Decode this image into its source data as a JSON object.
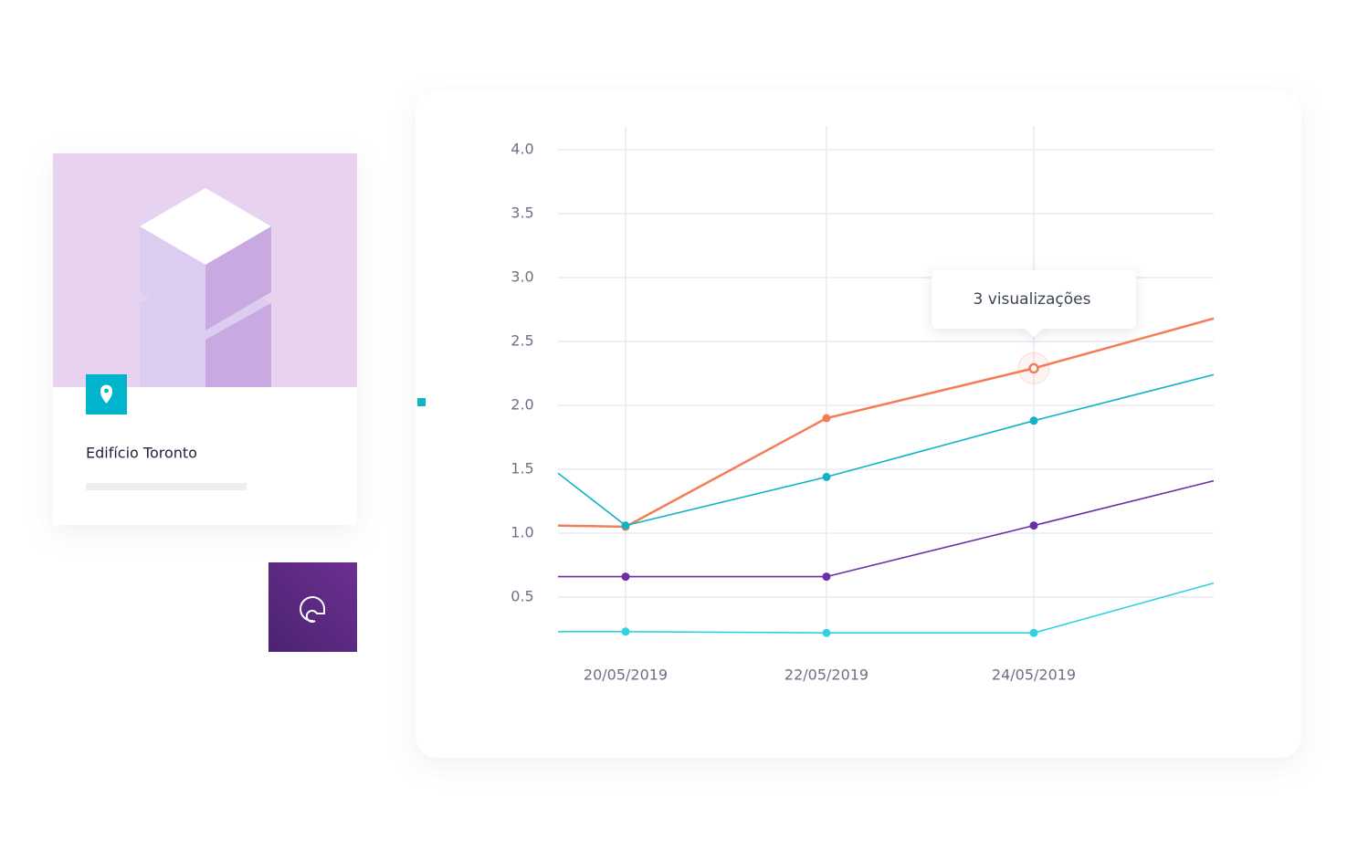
{
  "card": {
    "title": "Edifício Toronto"
  },
  "chart_data": {
    "type": "line",
    "categories": [
      null,
      "20/05/2019",
      "22/05/2019",
      "24/05/2019",
      null
    ],
    "annotation": "3 visualizações",
    "series": [
      {
        "color": "#f47c56",
        "values": [
          1.06,
          1.05,
          1.9,
          2.29,
          2.68
        ]
      },
      {
        "color": "#10b4c4",
        "values": [
          1.47,
          1.06,
          1.44,
          1.88,
          2.24
        ]
      },
      {
        "color": "#6a2ea6",
        "values": [
          0.66,
          0.66,
          0.66,
          1.06,
          1.41
        ]
      },
      {
        "color": "#2fd3e0",
        "values": [
          0.23,
          0.23,
          0.22,
          0.22,
          0.61
        ]
      }
    ],
    "ylim": [
      0,
      4.2
    ],
    "yticks": [
      {
        "value": 0.5,
        "label": "0.5"
      },
      {
        "value": 1,
        "label": "1.0"
      },
      {
        "value": 1.5,
        "label": "1.5"
      },
      {
        "value": 2,
        "label": "2.0"
      },
      {
        "value": 2.5,
        "label": "2.5"
      },
      {
        "value": 3,
        "label": "3.0"
      },
      {
        "value": 3.5,
        "label": "3.5"
      },
      {
        "value": 4,
        "label": "4.0"
      }
    ],
    "grid": true
  }
}
